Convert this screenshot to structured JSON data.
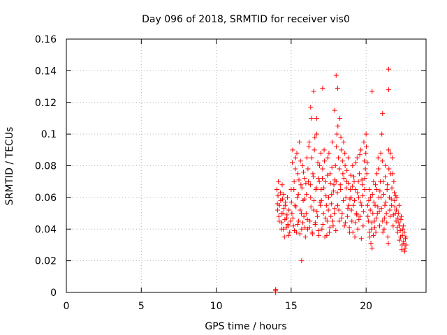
{
  "chart_data": {
    "type": "scatter",
    "title": "Day 096 of 2018, SRMTID for receiver vis0",
    "xlabel": "GPS time / hours",
    "ylabel": "SRMTID / TECUs",
    "xlim": [
      0,
      24
    ],
    "ylim": [
      0,
      0.16
    ],
    "x_ticks": [
      0,
      5,
      10,
      15,
      20
    ],
    "x_tick_labels": [
      "0",
      "5",
      "10",
      "15",
      "20"
    ],
    "y_ticks": [
      0,
      0.02,
      0.04,
      0.06,
      0.08,
      0.1,
      0.12,
      0.14,
      0.16
    ],
    "y_tick_labels": [
      "0",
      "0.02",
      "0.04",
      "0.06",
      "0.08",
      "0.1",
      "0.12",
      "0.14",
      "0.16"
    ],
    "grid": true,
    "legend": "none",
    "marker": "plus",
    "series_color": "#ff0000",
    "series": [
      {
        "x": [
          13.95,
          13.96,
          13.97,
          14.05,
          14.1,
          14.15,
          14.2,
          14.3,
          14.35,
          14.4,
          14.45,
          14.5,
          14.55,
          14.6,
          14.7,
          14.75,
          14.8,
          14.85,
          14.9,
          14.95,
          14.08,
          14.12,
          14.18,
          14.22,
          14.28,
          14.33,
          14.38,
          14.42,
          14.48,
          14.52,
          14.58,
          14.62,
          14.68,
          14.72,
          14.78,
          14.82,
          15.0,
          15.05,
          15.1,
          15.15,
          15.2,
          15.25,
          15.3,
          15.35,
          15.4,
          15.45,
          15.5,
          15.55,
          15.6,
          15.65,
          15.7,
          15.75,
          15.8,
          15.85,
          15.9,
          15.95,
          15.02,
          15.08,
          15.12,
          15.18,
          15.22,
          15.28,
          15.32,
          15.38,
          15.42,
          15.48,
          15.52,
          15.58,
          15.62,
          15.68,
          15.72,
          15.78,
          15.82,
          15.88,
          15.92,
          15.98,
          16.0,
          16.05,
          16.1,
          16.15,
          16.2,
          16.25,
          16.3,
          16.35,
          16.4,
          16.45,
          16.5,
          16.55,
          16.6,
          16.65,
          16.7,
          16.75,
          16.8,
          16.85,
          16.9,
          16.95,
          16.02,
          16.08,
          16.12,
          16.18,
          16.22,
          16.28,
          16.32,
          16.38,
          16.42,
          16.48,
          16.52,
          16.58,
          16.62,
          16.68,
          16.72,
          16.78,
          16.82,
          16.88,
          16.92,
          16.98,
          17.0,
          17.05,
          17.1,
          17.15,
          17.2,
          17.25,
          17.3,
          17.35,
          17.4,
          17.45,
          17.5,
          17.55,
          17.6,
          17.65,
          17.7,
          17.75,
          17.8,
          17.85,
          17.9,
          17.95,
          17.02,
          17.08,
          17.12,
          17.18,
          17.22,
          17.28,
          17.32,
          17.38,
          17.42,
          17.48,
          17.52,
          17.58,
          17.62,
          17.68,
          17.72,
          17.78,
          17.82,
          17.88,
          17.92,
          17.98,
          18.0,
          18.05,
          18.1,
          18.15,
          18.2,
          18.25,
          18.3,
          18.35,
          18.4,
          18.45,
          18.5,
          18.55,
          18.6,
          18.65,
          18.7,
          18.75,
          18.8,
          18.85,
          18.9,
          18.95,
          18.02,
          18.08,
          18.12,
          18.18,
          18.22,
          18.28,
          18.32,
          18.38,
          18.42,
          18.48,
          18.52,
          18.58,
          18.62,
          18.68,
          18.72,
          18.78,
          18.82,
          18.88,
          18.92,
          18.98,
          19.0,
          19.05,
          19.1,
          19.15,
          19.2,
          19.25,
          19.3,
          19.35,
          19.4,
          19.45,
          19.5,
          19.55,
          19.6,
          19.65,
          19.7,
          19.75,
          19.8,
          19.85,
          19.9,
          19.95,
          19.02,
          19.08,
          19.12,
          19.18,
          19.22,
          19.28,
          19.32,
          19.38,
          19.42,
          19.48,
          19.52,
          19.58,
          19.62,
          19.68,
          19.72,
          19.78,
          19.82,
          19.88,
          19.92,
          19.98,
          20.0,
          20.05,
          20.1,
          20.15,
          20.2,
          20.25,
          20.3,
          20.35,
          20.4,
          20.45,
          20.5,
          20.55,
          20.6,
          20.65,
          20.7,
          20.75,
          20.8,
          20.85,
          20.9,
          20.95,
          20.02,
          20.08,
          20.12,
          20.18,
          20.22,
          20.28,
          20.32,
          20.38,
          20.42,
          20.48,
          20.52,
          20.58,
          20.62,
          20.68,
          20.72,
          20.78,
          20.82,
          20.88,
          20.92,
          20.98,
          21.0,
          21.05,
          21.1,
          21.15,
          21.2,
          21.25,
          21.3,
          21.35,
          21.4,
          21.45,
          21.5,
          21.55,
          21.6,
          21.65,
          21.7,
          21.75,
          21.8,
          21.85,
          21.9,
          21.95,
          21.02,
          21.08,
          21.12,
          21.18,
          21.22,
          21.28,
          21.32,
          21.38,
          21.42,
          21.48,
          21.52,
          21.58,
          21.62,
          21.68,
          21.72,
          21.78,
          21.82,
          21.88,
          21.92,
          21.98,
          22.0,
          22.05,
          22.1,
          22.15,
          22.2,
          22.25,
          22.3,
          22.35,
          22.4,
          22.45,
          22.5,
          22.55,
          22.6,
          22.65,
          22.02,
          22.08,
          22.12,
          22.18,
          22.22,
          22.28,
          22.32,
          22.38,
          22.42,
          22.48,
          22.52,
          22.58,
          22.62,
          22.66,
          16.3,
          16.5,
          17.1,
          18.0,
          18.1,
          20.4,
          21.5,
          21.5,
          16.7,
          17.9,
          21.1,
          15.7
        ],
        "y": [
          0.0,
          0.001,
          0.002,
          0.065,
          0.052,
          0.07,
          0.045,
          0.058,
          0.04,
          0.068,
          0.05,
          0.062,
          0.035,
          0.055,
          0.047,
          0.06,
          0.042,
          0.052,
          0.038,
          0.045,
          0.056,
          0.061,
          0.048,
          0.055,
          0.063,
          0.05,
          0.044,
          0.059,
          0.04,
          0.053,
          0.046,
          0.057,
          0.041,
          0.049,
          0.043,
          0.036,
          0.065,
          0.05,
          0.09,
          0.042,
          0.07,
          0.055,
          0.085,
          0.038,
          0.06,
          0.075,
          0.045,
          0.095,
          0.052,
          0.068,
          0.04,
          0.08,
          0.058,
          0.048,
          0.072,
          0.035,
          0.057,
          0.082,
          0.047,
          0.065,
          0.039,
          0.078,
          0.054,
          0.088,
          0.043,
          0.062,
          0.071,
          0.037,
          0.083,
          0.05,
          0.066,
          0.044,
          0.076,
          0.059,
          0.041,
          0.069,
          0.05,
          0.085,
          0.04,
          0.07,
          0.095,
          0.045,
          0.06,
          0.11,
          0.038,
          0.075,
          0.052,
          0.09,
          0.043,
          0.065,
          0.1,
          0.048,
          0.072,
          0.036,
          0.08,
          0.055,
          0.062,
          0.046,
          0.078,
          0.092,
          0.041,
          0.068,
          0.054,
          0.085,
          0.037,
          0.073,
          0.058,
          0.098,
          0.044,
          0.066,
          0.051,
          0.082,
          0.039,
          0.07,
          0.057,
          0.088,
          0.065,
          0.04,
          0.078,
          0.05,
          0.09,
          0.035,
          0.07,
          0.055,
          0.045,
          0.085,
          0.06,
          0.038,
          0.075,
          0.048,
          0.062,
          0.095,
          0.042,
          0.068,
          0.053,
          0.08,
          0.058,
          0.072,
          0.043,
          0.066,
          0.083,
          0.047,
          0.061,
          0.036,
          0.074,
          0.052,
          0.088,
          0.041,
          0.069,
          0.056,
          0.079,
          0.045,
          0.064,
          0.05,
          0.071,
          0.039,
          0.07,
          0.1,
          0.055,
          0.085,
          0.045,
          0.11,
          0.065,
          0.09,
          0.05,
          0.075,
          0.095,
          0.042,
          0.08,
          0.06,
          0.07,
          0.048,
          0.085,
          0.055,
          0.038,
          0.065,
          0.092,
          0.063,
          0.105,
          0.052,
          0.078,
          0.068,
          0.098,
          0.047,
          0.083,
          0.058,
          0.072,
          0.088,
          0.044,
          0.066,
          0.077,
          0.053,
          0.069,
          0.041,
          0.059,
          0.074,
          0.06,
          0.045,
          0.08,
          0.055,
          0.07,
          0.035,
          0.065,
          0.05,
          0.085,
          0.04,
          0.06,
          0.075,
          0.048,
          0.09,
          0.055,
          0.068,
          0.042,
          0.095,
          0.065,
          0.078,
          0.052,
          0.067,
          0.038,
          0.073,
          0.058,
          0.044,
          0.082,
          0.049,
          0.063,
          0.07,
          0.046,
          0.087,
          0.057,
          0.034,
          0.071,
          0.061,
          0.051,
          0.083,
          0.072,
          0.088,
          0.1,
          0.075,
          0.055,
          0.045,
          0.065,
          0.035,
          0.06,
          0.04,
          0.028,
          0.05,
          0.07,
          0.045,
          0.055,
          0.038,
          0.065,
          0.05,
          0.085,
          0.06,
          0.042,
          0.07,
          0.092,
          0.082,
          0.048,
          0.058,
          0.038,
          0.052,
          0.031,
          0.044,
          0.062,
          0.036,
          0.057,
          0.041,
          0.068,
          0.047,
          0.075,
          0.054,
          0.078,
          0.051,
          0.064,
          0.088,
          0.06,
          0.1,
          0.045,
          0.07,
          0.04,
          0.055,
          0.08,
          0.05,
          0.065,
          0.035,
          0.09,
          0.06,
          0.048,
          0.075,
          0.055,
          0.085,
          0.042,
          0.07,
          0.058,
          0.05,
          0.053,
          0.083,
          0.038,
          0.062,
          0.047,
          0.073,
          0.057,
          0.044,
          0.068,
          0.031,
          0.078,
          0.052,
          0.088,
          0.059,
          0.066,
          0.075,
          0.049,
          0.063,
          0.054,
          0.061,
          0.045,
          0.06,
          0.038,
          0.05,
          0.055,
          0.042,
          0.035,
          0.048,
          0.03,
          0.04,
          0.032,
          0.038,
          0.028,
          0.035,
          0.052,
          0.041,
          0.047,
          0.044,
          0.033,
          0.039,
          0.046,
          0.027,
          0.036,
          0.042,
          0.031,
          0.026,
          0.034,
          0.03,
          0.117,
          0.127,
          0.129,
          0.137,
          0.129,
          0.127,
          0.141,
          0.128,
          0.11,
          0.115,
          0.113,
          0.02
        ]
      }
    ]
  }
}
